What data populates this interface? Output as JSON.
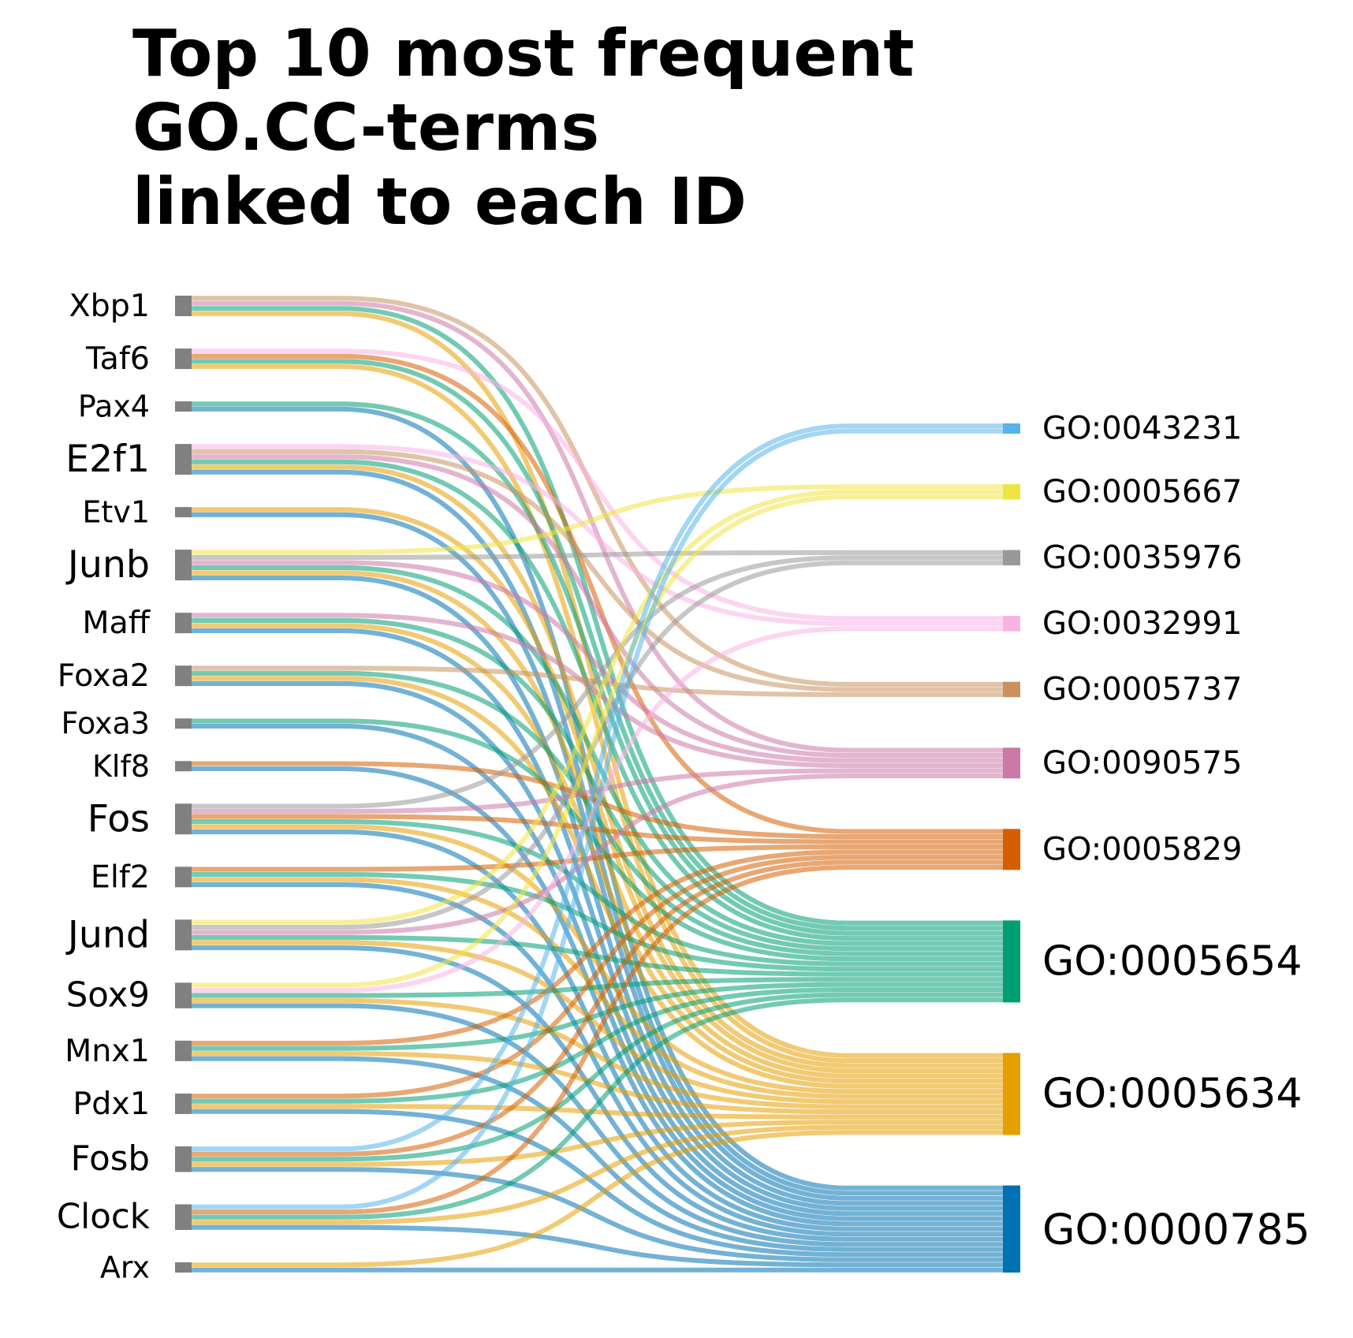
{
  "chart_data": {
    "type": "sankey",
    "title": [
      "Top 10 most frequent",
      "GO.CC-terms",
      "linked to each ID"
    ],
    "source_color": "#808080",
    "sources": [
      {
        "label": "Xbp1",
        "targets": [
          "GO:0005737",
          "GO:0090575",
          "GO:0005654",
          "GO:0005634"
        ]
      },
      {
        "label": "Taf6",
        "targets": [
          "GO:0032991",
          "GO:0005829",
          "GO:0005654",
          "GO:0005634"
        ]
      },
      {
        "label": "Pax4",
        "targets": [
          "GO:0005654",
          "GO:0000785"
        ]
      },
      {
        "label": "E2f1",
        "targets": [
          "GO:0032991",
          "GO:0005737",
          "GO:0090575",
          "GO:0005654",
          "GO:0005634",
          "GO:0000785"
        ]
      },
      {
        "label": "Etv1",
        "targets": [
          "GO:0005634",
          "GO:0000785"
        ]
      },
      {
        "label": "Junb",
        "targets": [
          "GO:0005667",
          "GO:0035976",
          "GO:0090575",
          "GO:0005654",
          "GO:0005634",
          "GO:0000785"
        ]
      },
      {
        "label": "Maff",
        "targets": [
          "GO:0090575",
          "GO:0005654",
          "GO:0005634",
          "GO:0000785"
        ]
      },
      {
        "label": "Foxa2",
        "targets": [
          "GO:0005737",
          "GO:0005654",
          "GO:0005634",
          "GO:0000785"
        ]
      },
      {
        "label": "Foxa3",
        "targets": [
          "GO:0005654",
          "GO:0000785"
        ]
      },
      {
        "label": "Klf8",
        "targets": [
          "GO:0005829",
          "GO:0000785"
        ]
      },
      {
        "label": "Fos",
        "targets": [
          "GO:0035976",
          "GO:0090575",
          "GO:0005829",
          "GO:0005654",
          "GO:0005634",
          "GO:0000785"
        ]
      },
      {
        "label": "Elf2",
        "targets": [
          "GO:0005829",
          "GO:0005654",
          "GO:0005634",
          "GO:0000785"
        ]
      },
      {
        "label": "Jund",
        "targets": [
          "GO:0005667",
          "GO:0035976",
          "GO:0090575",
          "GO:0005654",
          "GO:0005634",
          "GO:0000785"
        ]
      },
      {
        "label": "Sox9",
        "targets": [
          "GO:0005667",
          "GO:0032991",
          "GO:0005654",
          "GO:0005634",
          "GO:0000785"
        ]
      },
      {
        "label": "Mnx1",
        "targets": [
          "GO:0005829",
          "GO:0005654",
          "GO:0005634",
          "GO:0000785"
        ]
      },
      {
        "label": "Pdx1",
        "targets": [
          "GO:0005829",
          "GO:0005654",
          "GO:0005634",
          "GO:0000785"
        ]
      },
      {
        "label": "Fosb",
        "targets": [
          "GO:0043231",
          "GO:0005829",
          "GO:0005654",
          "GO:0005634",
          "GO:0000785"
        ]
      },
      {
        "label": "Clock",
        "targets": [
          "GO:0043231",
          "GO:0005829",
          "GO:0005654",
          "GO:0005634",
          "GO:0000785"
        ]
      },
      {
        "label": "Arx",
        "targets": [
          "GO:0005634",
          "GO:0000785"
        ]
      }
    ],
    "targets": [
      {
        "label": "GO:0043231",
        "color": "#56B4E9"
      },
      {
        "label": "GO:0005667",
        "color": "#F0E442"
      },
      {
        "label": "GO:0035976",
        "color": "#999999"
      },
      {
        "label": "GO:0032991",
        "color": "#F9B2E3"
      },
      {
        "label": "GO:0005737",
        "color": "#C8915F"
      },
      {
        "label": "GO:0090575",
        "color": "#CC79A7"
      },
      {
        "label": "GO:0005829",
        "color": "#D55E00"
      },
      {
        "label": "GO:0005654",
        "color": "#009E73"
      },
      {
        "label": "GO:0005634",
        "color": "#E69F00"
      },
      {
        "label": "GO:0000785",
        "color": "#0072B2"
      }
    ]
  }
}
